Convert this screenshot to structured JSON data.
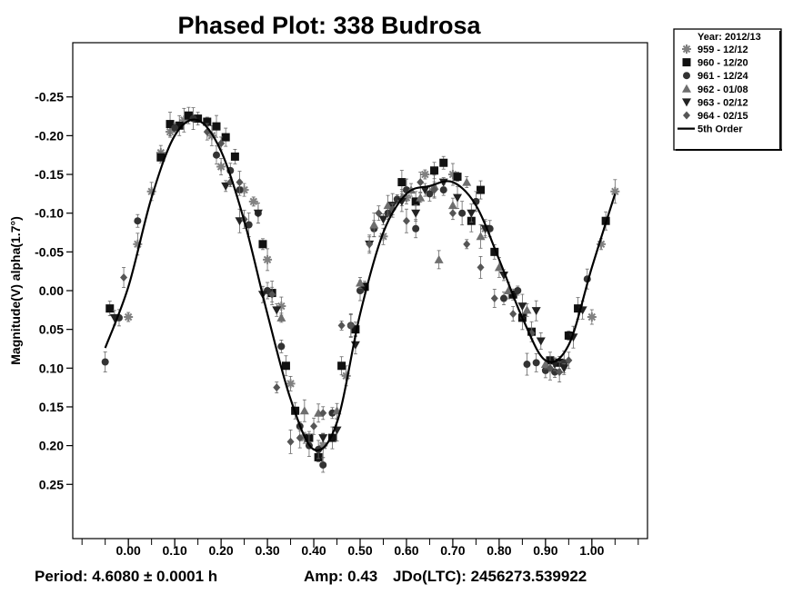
{
  "chart_data": {
    "type": "scatter",
    "title": "Phased Plot: 338 Budrosa",
    "xlabel": "",
    "ylabel": "Magnitude(V) alpha(1.7°)",
    "xlim": [
      -0.12,
      1.12
    ],
    "ylim": [
      0.32,
      -0.32
    ],
    "y_inverted": true,
    "x_ticks": [
      "0.00",
      "0.10",
      "0.20",
      "0.30",
      "0.40",
      "0.50",
      "0.60",
      "0.70",
      "0.80",
      "0.90",
      "1.00"
    ],
    "x_tick_values": [
      0,
      0.1,
      0.2,
      0.3,
      0.4,
      0.5,
      0.6,
      0.7,
      0.8,
      0.9,
      1.0
    ],
    "y_ticks": [
      "-0.25",
      "-0.20",
      "-0.15",
      "-0.10",
      "-0.05",
      "0.00",
      "0.05",
      "0.10",
      "0.15",
      "0.20",
      "0.25"
    ],
    "y_tick_values": [
      -0.25,
      -0.2,
      -0.15,
      -0.1,
      -0.05,
      0,
      0.05,
      0.1,
      0.15,
      0.2,
      0.25
    ],
    "legend": {
      "title": "Year: 2012/13",
      "placement": "outside-top-right",
      "entries": [
        "959 - 12/12",
        "960 - 12/20",
        "961 - 12/24",
        "962 - 01/08",
        "963 - 02/12",
        "964 - 02/15",
        "5th Order"
      ]
    },
    "footer": {
      "period": "Period: 4.6080 ± 0.0001 h",
      "amp": "Amp: 0.43",
      "jdo": "JDo(LTC): 2456273.539922"
    },
    "series": [
      {
        "name": "959 - 12/12",
        "marker": "asterisk",
        "points": [
          [
            0.0,
            0.034
          ],
          [
            0.02,
            -0.06
          ],
          [
            0.05,
            -0.128
          ],
          [
            0.07,
            -0.178
          ],
          [
            0.09,
            -0.205
          ],
          [
            0.12,
            -0.22
          ],
          [
            0.18,
            -0.2
          ],
          [
            0.2,
            -0.16
          ],
          [
            0.25,
            -0.13
          ],
          [
            0.27,
            -0.115
          ],
          [
            0.3,
            -0.04
          ],
          [
            0.33,
            0.02
          ],
          [
            0.35,
            0.12
          ],
          [
            0.38,
            0.19
          ],
          [
            0.42,
            0.2
          ],
          [
            0.47,
            0.11
          ],
          [
            0.55,
            -0.07
          ],
          [
            0.6,
            -0.12
          ],
          [
            0.64,
            -0.15
          ],
          [
            0.7,
            -0.15
          ],
          [
            0.77,
            -0.08
          ],
          [
            1.0,
            0.034
          ],
          [
            1.02,
            -0.06
          ],
          [
            1.05,
            -0.128
          ]
        ]
      },
      {
        "name": "960 - 12/20",
        "marker": "square",
        "points": [
          [
            -0.04,
            0.023
          ],
          [
            0.07,
            -0.172
          ],
          [
            0.09,
            -0.215
          ],
          [
            0.11,
            -0.213
          ],
          [
            0.13,
            -0.226
          ],
          [
            0.15,
            -0.222
          ],
          [
            0.17,
            -0.218
          ],
          [
            0.19,
            -0.212
          ],
          [
            0.21,
            -0.198
          ],
          [
            0.23,
            -0.173
          ],
          [
            0.29,
            -0.06
          ],
          [
            0.31,
            0.003
          ],
          [
            0.34,
            0.097
          ],
          [
            0.36,
            0.155
          ],
          [
            0.39,
            0.19
          ],
          [
            0.41,
            0.215
          ],
          [
            0.44,
            0.19
          ],
          [
            0.46,
            0.097
          ],
          [
            0.49,
            0.05
          ],
          [
            0.51,
            -0.005
          ],
          [
            0.59,
            -0.14
          ],
          [
            0.62,
            -0.115
          ],
          [
            0.66,
            -0.155
          ],
          [
            0.68,
            -0.165
          ],
          [
            0.71,
            -0.147
          ],
          [
            0.74,
            -0.09
          ],
          [
            0.76,
            -0.13
          ],
          [
            0.79,
            -0.05
          ],
          [
            0.83,
            0.005
          ],
          [
            0.85,
            0.035
          ],
          [
            0.87,
            0.053
          ],
          [
            0.91,
            0.09
          ],
          [
            0.93,
            0.093
          ],
          [
            0.95,
            0.058
          ],
          [
            0.97,
            0.023
          ],
          [
            1.03,
            -0.09
          ]
        ]
      },
      {
        "name": "961 - 12/24",
        "marker": "circle",
        "points": [
          [
            -0.05,
            0.092
          ],
          [
            -0.02,
            0.035
          ],
          [
            0.02,
            -0.09
          ],
          [
            0.1,
            -0.21
          ],
          [
            0.14,
            -0.222
          ],
          [
            0.19,
            -0.175
          ],
          [
            0.22,
            -0.155
          ],
          [
            0.24,
            -0.13
          ],
          [
            0.26,
            -0.085
          ],
          [
            0.28,
            -0.1
          ],
          [
            0.3,
            0.0
          ],
          [
            0.33,
            0.072
          ],
          [
            0.37,
            0.175
          ],
          [
            0.39,
            0.2
          ],
          [
            0.41,
            0.205
          ],
          [
            0.42,
            0.225
          ],
          [
            0.44,
            0.158
          ],
          [
            0.48,
            0.045
          ],
          [
            0.5,
            0.0
          ],
          [
            0.53,
            -0.08
          ],
          [
            0.56,
            -0.1
          ],
          [
            0.58,
            -0.118
          ],
          [
            0.6,
            -0.13
          ],
          [
            0.62,
            -0.08
          ],
          [
            0.65,
            -0.125
          ],
          [
            0.68,
            -0.13
          ],
          [
            0.72,
            -0.1
          ],
          [
            0.75,
            -0.115
          ],
          [
            0.78,
            -0.08
          ],
          [
            0.81,
            0.01
          ],
          [
            0.84,
            0.0
          ],
          [
            0.86,
            0.095
          ],
          [
            0.88,
            0.093
          ],
          [
            0.9,
            0.103
          ],
          [
            0.92,
            0.105
          ],
          [
            0.94,
            0.093
          ],
          [
            0.99,
            -0.015
          ]
        ]
      },
      {
        "name": "962 - 01/08",
        "marker": "triangle-up",
        "points": [
          [
            0.33,
            0.035
          ],
          [
            0.38,
            0.155
          ],
          [
            0.41,
            0.158
          ],
          [
            0.45,
            0.155
          ],
          [
            0.5,
            -0.01
          ],
          [
            0.53,
            -0.085
          ],
          [
            0.56,
            -0.11
          ],
          [
            0.59,
            -0.12
          ],
          [
            0.61,
            -0.13
          ],
          [
            0.63,
            -0.12
          ],
          [
            0.66,
            -0.135
          ],
          [
            0.67,
            -0.04
          ],
          [
            0.7,
            -0.11
          ],
          [
            0.73,
            -0.14
          ],
          [
            0.76,
            -0.07
          ],
          [
            0.8,
            -0.03
          ],
          [
            0.82,
            0.0
          ],
          [
            0.86,
            0.025
          ],
          [
            0.9,
            0.095
          ]
        ]
      },
      {
        "name": "963 - 02/12",
        "marker": "triangle-down",
        "points": [
          [
            -0.03,
            0.035
          ],
          [
            0.21,
            -0.135
          ],
          [
            0.24,
            -0.09
          ],
          [
            0.28,
            -0.1
          ],
          [
            0.29,
            0.005
          ],
          [
            0.32,
            0.025
          ],
          [
            0.42,
            0.19
          ],
          [
            0.45,
            0.18
          ],
          [
            0.49,
            0.07
          ],
          [
            0.52,
            -0.06
          ],
          [
            0.55,
            -0.092
          ],
          [
            0.57,
            -0.11
          ],
          [
            0.59,
            -0.115
          ],
          [
            0.62,
            -0.1
          ],
          [
            0.64,
            -0.13
          ],
          [
            0.68,
            -0.14
          ],
          [
            0.71,
            -0.12
          ],
          [
            0.74,
            -0.1
          ],
          [
            0.77,
            -0.08
          ],
          [
            0.81,
            -0.02
          ],
          [
            0.85,
            0.02
          ],
          [
            0.88,
            0.026
          ],
          [
            0.89,
            0.065
          ],
          [
            0.92,
            0.095
          ],
          [
            0.94,
            0.1
          ],
          [
            0.96,
            0.06
          ],
          [
            0.98,
            0.025
          ]
        ]
      },
      {
        "name": "964 - 02/15",
        "marker": "diamond",
        "points": [
          [
            -0.01,
            -0.017
          ],
          [
            0.17,
            -0.205
          ],
          [
            0.2,
            -0.19
          ],
          [
            0.22,
            -0.14
          ],
          [
            0.24,
            -0.14
          ],
          [
            0.25,
            -0.092
          ],
          [
            0.31,
            0.005
          ],
          [
            0.32,
            0.125
          ],
          [
            0.35,
            0.195
          ],
          [
            0.37,
            0.19
          ],
          [
            0.4,
            0.175
          ],
          [
            0.42,
            0.158
          ],
          [
            0.46,
            0.045
          ],
          [
            0.48,
            0.045
          ],
          [
            0.52,
            -0.06
          ],
          [
            0.54,
            -0.1
          ],
          [
            0.57,
            -0.105
          ],
          [
            0.6,
            -0.09
          ],
          [
            0.63,
            -0.14
          ],
          [
            0.66,
            -0.13
          ],
          [
            0.7,
            -0.1
          ],
          [
            0.73,
            -0.06
          ],
          [
            0.76,
            -0.03
          ],
          [
            0.79,
            0.01
          ],
          [
            0.83,
            0.03
          ],
          [
            0.87,
            0.055
          ],
          [
            0.91,
            0.1
          ],
          [
            0.93,
            0.105
          ],
          [
            0.95,
            0.09
          ]
        ]
      }
    ],
    "fit_curve": {
      "name": "5th Order",
      "x": [
        -0.05,
        0.0,
        0.05,
        0.1,
        0.15,
        0.2,
        0.25,
        0.3,
        0.35,
        0.4,
        0.45,
        0.5,
        0.55,
        0.6,
        0.65,
        0.7,
        0.75,
        0.8,
        0.85,
        0.9,
        0.95,
        1.0,
        1.05
      ],
      "y": [
        0.074,
        -0.005,
        -0.12,
        -0.2,
        -0.22,
        -0.18,
        -0.09,
        0.03,
        0.14,
        0.205,
        0.17,
        0.03,
        -0.075,
        -0.125,
        -0.135,
        -0.14,
        -0.11,
        -0.04,
        0.035,
        0.09,
        0.07,
        -0.03,
        -0.125
      ]
    }
  }
}
